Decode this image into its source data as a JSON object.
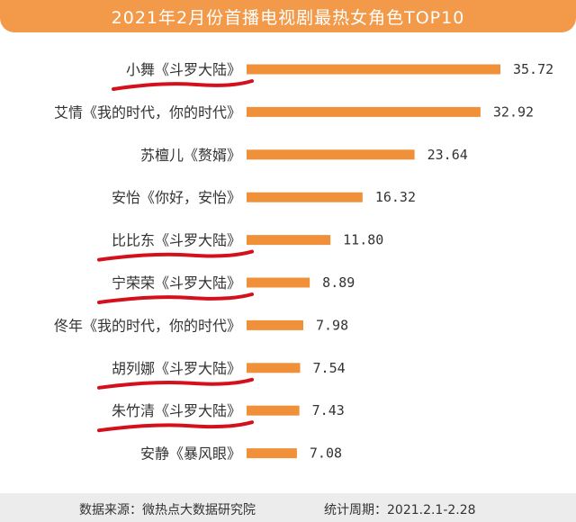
{
  "colors": {
    "bar": "#f0913a",
    "title_bg": "#f29a4a",
    "annotation": "#d4101c"
  },
  "chart_data": {
    "type": "bar",
    "orientation": "horizontal",
    "title": "2021年2月份首播电视剧最热女角色TOP10",
    "categories": [
      "小舞《斗罗大陆》",
      "艾情《我的时代，你的时代》",
      "苏檀儿《赘婿》",
      "安怡《你好，安怡》",
      "比比东《斗罗大陆》",
      "宁荣荣《斗罗大陆》",
      "佟年《我的时代，你的时代》",
      "胡列娜《斗罗大陆》",
      "朱竹清《斗罗大陆》",
      "安静《暴风眼》"
    ],
    "values": [
      35.72,
      32.92,
      23.64,
      16.32,
      11.8,
      8.89,
      7.98,
      7.54,
      7.43,
      7.08
    ],
    "value_labels": [
      "35.72",
      "32.92",
      "23.64",
      "16.32",
      "11.80",
      "8.89",
      "7.98",
      "7.54",
      "7.43",
      "7.08"
    ],
    "underlined": [
      true,
      false,
      false,
      false,
      true,
      true,
      false,
      true,
      true,
      false
    ],
    "xlim": [
      0,
      36
    ],
    "grid": false,
    "legend": "none"
  },
  "footer": {
    "source": "数据来源：微热点大数据研究院",
    "period": "统计周期：2021.2.1-2.28"
  }
}
